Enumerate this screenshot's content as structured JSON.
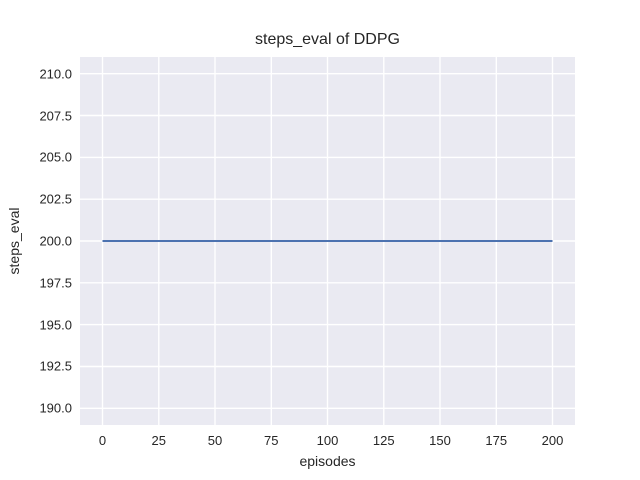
{
  "chart_data": {
    "type": "line",
    "title": "steps_eval of DDPG",
    "xlabel": "episodes",
    "ylabel": "steps_eval",
    "xlim": [
      -10,
      210
    ],
    "ylim": [
      189,
      211
    ],
    "xticks": [
      0,
      25,
      50,
      75,
      100,
      125,
      150,
      175,
      200
    ],
    "xtick_labels": [
      "0",
      "25",
      "50",
      "75",
      "100",
      "125",
      "150",
      "175",
      "200"
    ],
    "yticks": [
      190,
      192.5,
      195,
      197.5,
      200,
      202.5,
      205,
      207.5,
      210
    ],
    "ytick_labels": [
      "190.0",
      "192.5",
      "195.0",
      "197.5",
      "200.0",
      "202.5",
      "205.0",
      "207.5",
      "210.0"
    ],
    "grid": true,
    "legend": false,
    "series": [
      {
        "x": [
          0,
          200
        ],
        "y": [
          200,
          200
        ],
        "color": "#4c72b0",
        "linewidth": 2
      }
    ],
    "colors": {
      "figure_bg": "#ffffff",
      "axes_bg": "#eaeaf2",
      "grid": "#ffffff",
      "text": "#262626"
    }
  }
}
